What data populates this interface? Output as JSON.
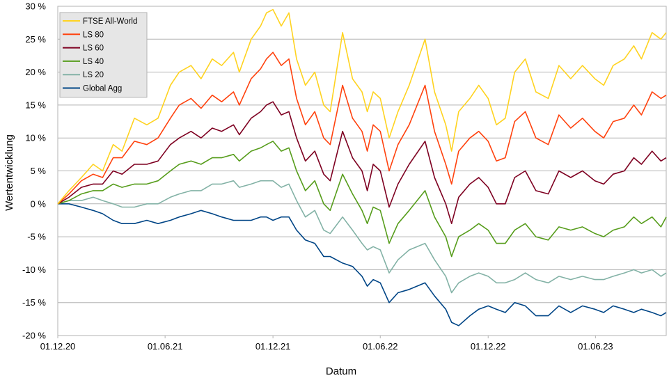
{
  "chart_data": {
    "type": "line",
    "xlabel": "Datum",
    "ylabel": "Wertentwicklung",
    "ylim": [
      -20,
      30
    ],
    "yticks": [
      30,
      25,
      20,
      15,
      10,
      5,
      0,
      -5,
      -10,
      -15,
      -20
    ],
    "ytick_labels": [
      "30 %",
      "25 %",
      "20 %",
      "15 %",
      "10 %",
      "5 %",
      "0 %",
      "-5 %",
      "-10 %",
      "-15 %",
      "-20 %"
    ],
    "xticks": [
      "2020-12-01",
      "2021-06-01",
      "2021-12-01",
      "2022-06-01",
      "2022-12-01",
      "2023-06-01"
    ],
    "xtick_labels": [
      "01.12.20",
      "01.06.21",
      "01.12.21",
      "01.06.22",
      "01.12.22",
      "01.06.23"
    ],
    "xlim": [
      "2020-12-01",
      "2023-09-29"
    ],
    "grid": true,
    "legend_position": "top-left",
    "series": [
      {
        "name": "FTSE All-World",
        "color": "#ffd320",
        "x": [
          "2020-12-01",
          "2020-12-20",
          "2021-01-10",
          "2021-01-30",
          "2021-02-15",
          "2021-03-05",
          "2021-03-20",
          "2021-04-10",
          "2021-05-01",
          "2021-05-20",
          "2021-06-10",
          "2021-06-25",
          "2021-07-15",
          "2021-08-01",
          "2021-08-20",
          "2021-09-05",
          "2021-09-25",
          "2021-10-05",
          "2021-10-25",
          "2021-11-10",
          "2021-11-20",
          "2021-12-01",
          "2021-12-15",
          "2021-12-28",
          "2022-01-10",
          "2022-01-25",
          "2022-02-10",
          "2022-02-25",
          "2022-03-08",
          "2022-03-29",
          "2022-04-15",
          "2022-05-01",
          "2022-05-10",
          "2022-05-20",
          "2022-06-01",
          "2022-06-16",
          "2022-07-01",
          "2022-07-20",
          "2022-08-16",
          "2022-09-01",
          "2022-09-20",
          "2022-09-30",
          "2022-10-12",
          "2022-10-31",
          "2022-11-15",
          "2022-12-01",
          "2022-12-15",
          "2022-12-30",
          "2023-01-15",
          "2023-02-02",
          "2023-02-20",
          "2023-03-13",
          "2023-03-31",
          "2023-04-20",
          "2023-05-10",
          "2023-05-31",
          "2023-06-15",
          "2023-07-01",
          "2023-07-20",
          "2023-08-05",
          "2023-08-18",
          "2023-09-05",
          "2023-09-20",
          "2023-09-29"
        ],
        "y": [
          0,
          2,
          4,
          6,
          5,
          9,
          8,
          13,
          12,
          13,
          18,
          20,
          21,
          19,
          22,
          21,
          23,
          20,
          25,
          27,
          29,
          29.5,
          27,
          29,
          22,
          18,
          20,
          15,
          14,
          26,
          19,
          17,
          14,
          17,
          16,
          10,
          14,
          18,
          25,
          17,
          12,
          8,
          14,
          16,
          18,
          16,
          12,
          13,
          20,
          22,
          17,
          16,
          21,
          19,
          21,
          19,
          18,
          21,
          22,
          24,
          22,
          26,
          25,
          26
        ]
      },
      {
        "name": "LS 80",
        "color": "#ff420e",
        "x": [
          "2020-12-01",
          "2020-12-20",
          "2021-01-10",
          "2021-01-30",
          "2021-02-15",
          "2021-03-05",
          "2021-03-20",
          "2021-04-10",
          "2021-05-01",
          "2021-05-20",
          "2021-06-10",
          "2021-06-25",
          "2021-07-15",
          "2021-08-01",
          "2021-08-20",
          "2021-09-05",
          "2021-09-25",
          "2021-10-05",
          "2021-10-25",
          "2021-11-10",
          "2021-11-20",
          "2021-12-01",
          "2021-12-15",
          "2021-12-28",
          "2022-01-10",
          "2022-01-25",
          "2022-02-10",
          "2022-02-25",
          "2022-03-08",
          "2022-03-29",
          "2022-04-15",
          "2022-05-01",
          "2022-05-10",
          "2022-05-20",
          "2022-06-01",
          "2022-06-16",
          "2022-07-01",
          "2022-07-20",
          "2022-08-16",
          "2022-09-01",
          "2022-09-20",
          "2022-09-30",
          "2022-10-12",
          "2022-10-31",
          "2022-11-15",
          "2022-12-01",
          "2022-12-15",
          "2022-12-30",
          "2023-01-15",
          "2023-02-02",
          "2023-02-20",
          "2023-03-13",
          "2023-03-31",
          "2023-04-20",
          "2023-05-10",
          "2023-05-31",
          "2023-06-15",
          "2023-07-01",
          "2023-07-20",
          "2023-08-05",
          "2023-08-18",
          "2023-09-05",
          "2023-09-20",
          "2023-09-29"
        ],
        "y": [
          0,
          1.5,
          3.5,
          4.5,
          4,
          7,
          7,
          9.5,
          9,
          10,
          13,
          15,
          16,
          14.5,
          16.5,
          15.5,
          17,
          15,
          19,
          20.5,
          22,
          23,
          21,
          22,
          16,
          12,
          14,
          10,
          9,
          18,
          13,
          11,
          8,
          12,
          11,
          5,
          9,
          12,
          18,
          11,
          6,
          3,
          8,
          10,
          11,
          9.5,
          6.5,
          7,
          12.5,
          14,
          10,
          9,
          13.5,
          11.5,
          13,
          11,
          10,
          12.5,
          13,
          15,
          13.5,
          17,
          16,
          16.5
        ]
      },
      {
        "name": "LS 60",
        "color": "#7e0021",
        "x": [
          "2020-12-01",
          "2020-12-20",
          "2021-01-10",
          "2021-01-30",
          "2021-02-15",
          "2021-03-05",
          "2021-03-20",
          "2021-04-10",
          "2021-05-01",
          "2021-05-20",
          "2021-06-10",
          "2021-06-25",
          "2021-07-15",
          "2021-08-01",
          "2021-08-20",
          "2021-09-05",
          "2021-09-25",
          "2021-10-05",
          "2021-10-25",
          "2021-11-10",
          "2021-11-20",
          "2021-12-01",
          "2021-12-15",
          "2021-12-28",
          "2022-01-10",
          "2022-01-25",
          "2022-02-10",
          "2022-02-25",
          "2022-03-08",
          "2022-03-29",
          "2022-04-15",
          "2022-05-01",
          "2022-05-10",
          "2022-05-20",
          "2022-06-01",
          "2022-06-16",
          "2022-07-01",
          "2022-07-20",
          "2022-08-16",
          "2022-09-01",
          "2022-09-20",
          "2022-09-30",
          "2022-10-12",
          "2022-10-31",
          "2022-11-15",
          "2022-12-01",
          "2022-12-15",
          "2022-12-30",
          "2023-01-15",
          "2023-02-02",
          "2023-02-20",
          "2023-03-13",
          "2023-03-31",
          "2023-04-20",
          "2023-05-10",
          "2023-05-31",
          "2023-06-15",
          "2023-07-01",
          "2023-07-20",
          "2023-08-05",
          "2023-08-18",
          "2023-09-05",
          "2023-09-20",
          "2023-09-29"
        ],
        "y": [
          0,
          1,
          2.5,
          3,
          3,
          5,
          4.5,
          6,
          6,
          6.5,
          9,
          10,
          11,
          10,
          11.5,
          11,
          12,
          10.5,
          13,
          14,
          15,
          15.5,
          13.5,
          14,
          10,
          6.5,
          8,
          4.5,
          3.5,
          11,
          7,
          5,
          2,
          6,
          5,
          -0.5,
          3,
          6,
          9.5,
          4,
          0,
          -3,
          1,
          3,
          4,
          2.5,
          0,
          0,
          4,
          5,
          2,
          1.5,
          5,
          4,
          5,
          3.5,
          3,
          4.5,
          5,
          7,
          6,
          8,
          6.5,
          7
        ]
      },
      {
        "name": "LS 40",
        "color": "#579d1c",
        "x": [
          "2020-12-01",
          "2020-12-20",
          "2021-01-10",
          "2021-01-30",
          "2021-02-15",
          "2021-03-05",
          "2021-03-20",
          "2021-04-10",
          "2021-05-01",
          "2021-05-20",
          "2021-06-10",
          "2021-06-25",
          "2021-07-15",
          "2021-08-01",
          "2021-08-20",
          "2021-09-05",
          "2021-09-25",
          "2021-10-05",
          "2021-10-25",
          "2021-11-10",
          "2021-11-20",
          "2021-12-01",
          "2021-12-15",
          "2021-12-28",
          "2022-01-10",
          "2022-01-25",
          "2022-02-10",
          "2022-02-25",
          "2022-03-08",
          "2022-03-29",
          "2022-04-15",
          "2022-05-01",
          "2022-05-10",
          "2022-05-20",
          "2022-06-01",
          "2022-06-16",
          "2022-07-01",
          "2022-07-20",
          "2022-08-16",
          "2022-09-01",
          "2022-09-20",
          "2022-09-30",
          "2022-10-12",
          "2022-10-31",
          "2022-11-15",
          "2022-12-01",
          "2022-12-15",
          "2022-12-30",
          "2023-01-15",
          "2023-02-02",
          "2023-02-20",
          "2023-03-13",
          "2023-03-31",
          "2023-04-20",
          "2023-05-10",
          "2023-05-31",
          "2023-06-15",
          "2023-07-01",
          "2023-07-20",
          "2023-08-05",
          "2023-08-18",
          "2023-09-05",
          "2023-09-20",
          "2023-09-29"
        ],
        "y": [
          0,
          0.5,
          1.5,
          2,
          2,
          3,
          2.5,
          3,
          3,
          3.5,
          5,
          6,
          6.5,
          6,
          7,
          7,
          7.5,
          6.5,
          8,
          8.5,
          9,
          9.5,
          8,
          8.5,
          5,
          2,
          3.5,
          0,
          -1,
          4.5,
          1.5,
          -1,
          -3,
          -0.5,
          -1,
          -6,
          -3,
          -1,
          2,
          -2,
          -5,
          -8,
          -5,
          -4,
          -3,
          -4,
          -6,
          -6,
          -4,
          -3,
          -5,
          -5.5,
          -3.5,
          -4,
          -3.5,
          -4.5,
          -5,
          -4,
          -3.5,
          -2,
          -3,
          -2,
          -3.5,
          -2
        ]
      },
      {
        "name": "LS 20",
        "color": "#83b2a6",
        "x": [
          "2020-12-01",
          "2020-12-20",
          "2021-01-10",
          "2021-01-30",
          "2021-02-15",
          "2021-03-05",
          "2021-03-20",
          "2021-04-10",
          "2021-05-01",
          "2021-05-20",
          "2021-06-10",
          "2021-06-25",
          "2021-07-15",
          "2021-08-01",
          "2021-08-20",
          "2021-09-05",
          "2021-09-25",
          "2021-10-05",
          "2021-10-25",
          "2021-11-10",
          "2021-11-20",
          "2021-12-01",
          "2021-12-15",
          "2021-12-28",
          "2022-01-10",
          "2022-01-25",
          "2022-02-10",
          "2022-02-25",
          "2022-03-08",
          "2022-03-29",
          "2022-04-15",
          "2022-05-01",
          "2022-05-10",
          "2022-05-20",
          "2022-06-01",
          "2022-06-16",
          "2022-07-01",
          "2022-07-20",
          "2022-08-16",
          "2022-09-01",
          "2022-09-20",
          "2022-09-30",
          "2022-10-12",
          "2022-10-31",
          "2022-11-15",
          "2022-12-01",
          "2022-12-15",
          "2022-12-30",
          "2023-01-15",
          "2023-02-02",
          "2023-02-20",
          "2023-03-13",
          "2023-03-31",
          "2023-04-20",
          "2023-05-10",
          "2023-05-31",
          "2023-06-15",
          "2023-07-01",
          "2023-07-20",
          "2023-08-05",
          "2023-08-18",
          "2023-09-05",
          "2023-09-20",
          "2023-09-29"
        ],
        "y": [
          0,
          0.5,
          0.5,
          1,
          0.5,
          0,
          -0.5,
          -0.5,
          0,
          0,
          1,
          1.5,
          2,
          2,
          3,
          3,
          3.5,
          2.5,
          3,
          3.5,
          3.5,
          3.5,
          2.5,
          3,
          0.5,
          -2,
          -1,
          -4,
          -4.5,
          -2,
          -4,
          -6,
          -7,
          -6.5,
          -7,
          -10.5,
          -8.5,
          -7,
          -6,
          -8.5,
          -11,
          -13.5,
          -12,
          -11,
          -10.5,
          -11,
          -12,
          -12,
          -11.5,
          -10.5,
          -11.5,
          -12,
          -11,
          -11.5,
          -11,
          -11.5,
          -11.5,
          -11,
          -10.5,
          -10,
          -10.5,
          -10,
          -11,
          -10.5
        ]
      },
      {
        "name": "Global Agg",
        "color": "#004586",
        "x": [
          "2020-12-01",
          "2020-12-20",
          "2021-01-10",
          "2021-01-30",
          "2021-02-15",
          "2021-03-05",
          "2021-03-20",
          "2021-04-10",
          "2021-05-01",
          "2021-05-20",
          "2021-06-10",
          "2021-06-25",
          "2021-07-15",
          "2021-08-01",
          "2021-08-20",
          "2021-09-05",
          "2021-09-25",
          "2021-10-05",
          "2021-10-25",
          "2021-11-10",
          "2021-11-20",
          "2021-12-01",
          "2021-12-15",
          "2021-12-28",
          "2022-01-10",
          "2022-01-25",
          "2022-02-10",
          "2022-02-25",
          "2022-03-08",
          "2022-03-29",
          "2022-04-15",
          "2022-05-01",
          "2022-05-10",
          "2022-05-20",
          "2022-06-01",
          "2022-06-16",
          "2022-07-01",
          "2022-07-20",
          "2022-08-16",
          "2022-09-01",
          "2022-09-20",
          "2022-09-30",
          "2022-10-12",
          "2022-10-31",
          "2022-11-15",
          "2022-12-01",
          "2022-12-15",
          "2022-12-30",
          "2023-01-15",
          "2023-02-02",
          "2023-02-20",
          "2023-03-13",
          "2023-03-31",
          "2023-04-20",
          "2023-05-10",
          "2023-05-31",
          "2023-06-15",
          "2023-07-01",
          "2023-07-20",
          "2023-08-05",
          "2023-08-18",
          "2023-09-05",
          "2023-09-20",
          "2023-09-29"
        ],
        "y": [
          0,
          0,
          -0.5,
          -1,
          -1.5,
          -2.5,
          -3,
          -3,
          -2.5,
          -3,
          -2.5,
          -2,
          -1.5,
          -1,
          -1.5,
          -2,
          -2.5,
          -2.5,
          -2.5,
          -2,
          -2,
          -2.5,
          -2,
          -2,
          -4,
          -5.5,
          -6,
          -8,
          -8,
          -9,
          -9.5,
          -11,
          -12.5,
          -11.5,
          -12,
          -15,
          -13.5,
          -13,
          -12,
          -14,
          -16,
          -18,
          -18.5,
          -17,
          -16,
          -15.5,
          -16,
          -16.5,
          -15,
          -15.5,
          -17,
          -17,
          -15.5,
          -16.5,
          -15.5,
          -16,
          -16.5,
          -15.5,
          -16,
          -16.5,
          -16,
          -16.5,
          -17,
          -16.5
        ]
      }
    ]
  }
}
